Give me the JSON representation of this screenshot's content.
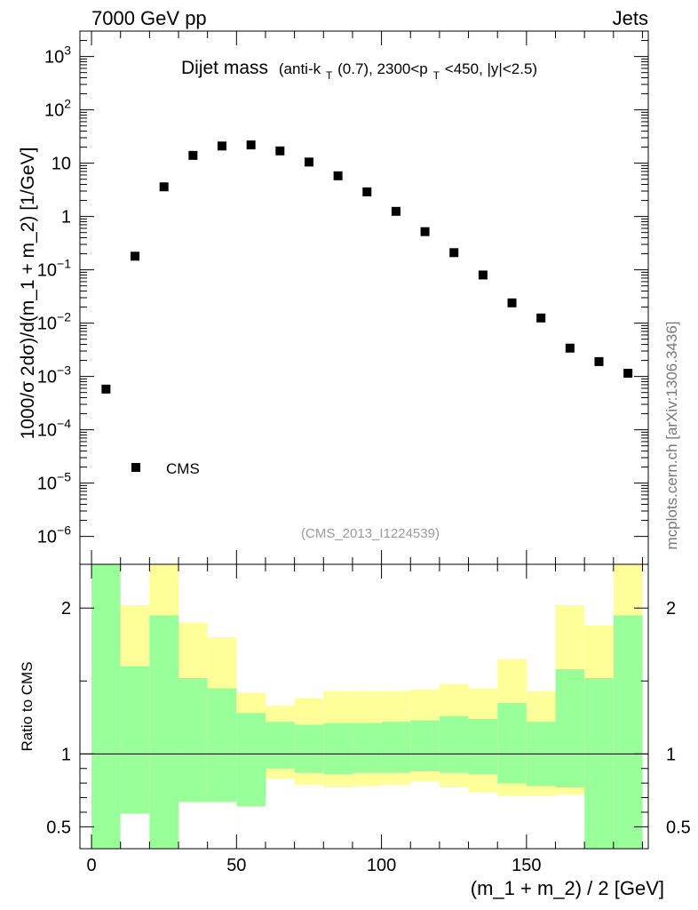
{
  "header": {
    "energy_label": "7000 GeV pp",
    "process_label": "Jets"
  },
  "side_label": "mcplots.cern.ch [arXiv:1306.3436]",
  "colors": {
    "inner_band": "#99ff99",
    "outer_band": "#ffff99",
    "marker": "#000000",
    "analysis_text": "#999999"
  },
  "chart_data": [
    {
      "type": "scatter",
      "title": {
        "main": "Dijet mass",
        "sub_prefix": "(anti-k",
        "sub_sub1": "T",
        "sub_mid": "(0.7), 2300<p",
        "sub_sub2": "T",
        "sub_suffix": "<450, |y|<2.5)"
      },
      "ylabel": "1000/σ 2dσ)/d(m_1 + m_2) [1/GeV]",
      "yscale": "log",
      "ylim": [
        3e-07,
        3000
      ],
      "y_ticks": [
        {
          "value": 1e-06,
          "base": "10",
          "exp": "−6"
        },
        {
          "value": 1e-05,
          "base": "10",
          "exp": "−5"
        },
        {
          "value": 0.0001,
          "base": "10",
          "exp": "−4"
        },
        {
          "value": 0.001,
          "base": "10",
          "exp": "−3"
        },
        {
          "value": 0.01,
          "base": "10",
          "exp": "−2"
        },
        {
          "value": 0.1,
          "base": "10",
          "exp": "−1"
        },
        {
          "value": 1,
          "base": "1",
          "exp": ""
        },
        {
          "value": 10,
          "base": "10",
          "exp": ""
        },
        {
          "value": 100,
          "base": "10",
          "exp": "2"
        },
        {
          "value": 1000,
          "base": "10",
          "exp": "3"
        }
      ],
      "xlim": [
        -4,
        192
      ],
      "legend": {
        "label": "CMS",
        "placement": "bottom-left"
      },
      "analysis_id": "(CMS_2013_I1224539)",
      "series": [
        {
          "name": "CMS",
          "x": [
            5,
            15,
            25,
            35,
            45,
            55,
            65,
            75,
            85,
            95,
            105,
            115,
            125,
            135,
            145,
            155,
            165,
            175,
            185
          ],
          "values": [
            0.00058,
            0.18,
            3.6,
            14,
            21,
            22,
            17,
            10.5,
            5.8,
            2.9,
            1.25,
            0.52,
            0.21,
            0.08,
            0.024,
            0.0125,
            0.0034,
            0.0019,
            0.00115
          ]
        }
      ]
    },
    {
      "type": "area",
      "ylabel": "Ratio to CMS",
      "xlabel": "(m_1 + m_2) / 2 [GeV]",
      "ylim": [
        0.35,
        2.3
      ],
      "xlim": [
        -4,
        192
      ],
      "x_ticks": [
        0,
        50,
        100,
        150
      ],
      "y_ticks": [
        {
          "value": 0.5,
          "label": "0.5"
        },
        {
          "value": 1,
          "label": "1"
        },
        {
          "value": 2,
          "label": "2"
        }
      ],
      "bin_edges": [
        0,
        10,
        20,
        30,
        40,
        50,
        60,
        70,
        80,
        90,
        100,
        110,
        120,
        130,
        140,
        150,
        160,
        170,
        180,
        190
      ],
      "inner_band": {
        "upper": [
          2.3,
          1.6,
          1.95,
          1.52,
          1.45,
          1.28,
          1.22,
          1.2,
          1.21,
          1.21,
          1.22,
          1.23,
          1.26,
          1.24,
          1.35,
          1.22,
          1.58,
          1.52,
          1.95
        ],
        "lower": [
          0.35,
          0.35,
          0.35,
          0.35,
          0.35,
          0.35,
          0.9,
          0.87,
          0.86,
          0.87,
          0.87,
          0.88,
          0.87,
          0.86,
          0.8,
          0.78,
          0.77,
          0.35,
          0.35
        ]
      },
      "outer_band": {
        "upper": [
          2.3,
          2.02,
          2.3,
          1.9,
          1.8,
          1.42,
          1.33,
          1.38,
          1.43,
          1.43,
          1.43,
          1.44,
          1.48,
          1.45,
          1.65,
          1.43,
          2.02,
          1.88,
          2.3
        ],
        "lower": [
          0.35,
          0.35,
          0.6,
          0.35,
          0.35,
          0.35,
          0.83,
          0.79,
          0.77,
          0.78,
          0.79,
          0.81,
          0.77,
          0.74,
          0.58,
          0.71,
          0.72,
          0.35,
          0.35
        ]
      },
      "hole_regions": [
        {
          "x0": 10,
          "x1": 20,
          "y_low": 0.35,
          "y_high": 0.59
        },
        {
          "x0": 30,
          "x1": 50,
          "y_low": 0.35,
          "y_high": 0.67
        },
        {
          "x0": 50,
          "x1": 60,
          "y_low": 0.35,
          "y_high": 0.64
        },
        {
          "x0": 60,
          "x1": 170,
          "y_low": 0.35,
          "y_high": 0.71
        },
        {
          "x0": 170,
          "x1": 180,
          "y_low": 0.35,
          "y_high": 0.35
        }
      ],
      "reference_line": 1
    }
  ]
}
